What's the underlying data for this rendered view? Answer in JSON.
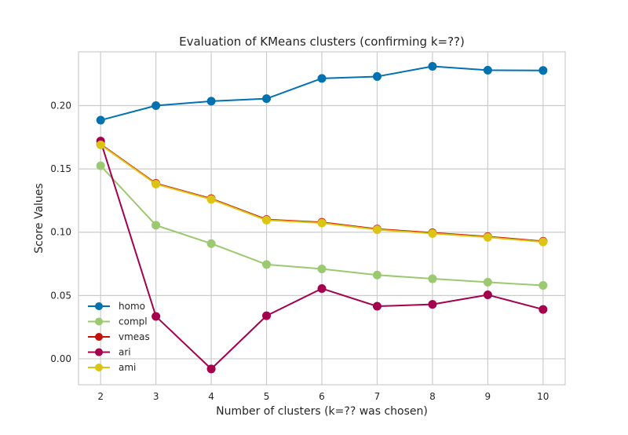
{
  "chart_data": {
    "type": "line",
    "title": "Evaluation of KMeans clusters (confirming k=??)",
    "xlabel": "Number of clusters (k=?? was chosen)",
    "ylabel": "Score Values",
    "x": [
      2,
      3,
      4,
      5,
      6,
      7,
      8,
      9,
      10
    ],
    "xlim": [
      1.6,
      10.4
    ],
    "ylim": [
      -0.0205,
      0.2425
    ],
    "xticks": [
      "2",
      "3",
      "4",
      "5",
      "6",
      "7",
      "8",
      "9",
      "10"
    ],
    "yticks": [
      {
        "value": 0.0,
        "label": "0.00"
      },
      {
        "value": 0.05,
        "label": "0.05"
      },
      {
        "value": 0.1,
        "label": "0.10"
      },
      {
        "value": 0.15,
        "label": "0.15"
      },
      {
        "value": 0.2,
        "label": "0.20"
      }
    ],
    "grid": true,
    "legend_position": "lower-left",
    "series": [
      {
        "name": "homo",
        "color": "#0072b2",
        "values": [
          0.1885,
          0.2,
          0.2035,
          0.2055,
          0.2215,
          0.223,
          0.231,
          0.228,
          0.2278
        ]
      },
      {
        "name": "compl",
        "color": "#9bc96f",
        "values": [
          0.1525,
          0.1055,
          0.091,
          0.0745,
          0.071,
          0.0662,
          0.0632,
          0.0605,
          0.058
        ]
      },
      {
        "name": "vmeas",
        "color": "#c8100b",
        "values": [
          0.1695,
          0.1385,
          0.1265,
          0.11,
          0.1078,
          0.1025,
          0.0995,
          0.0965,
          0.0928
        ]
      },
      {
        "name": "ari",
        "color": "#a4004e",
        "values": [
          0.172,
          0.0335,
          -0.008,
          0.034,
          0.0555,
          0.0415,
          0.043,
          0.0505,
          0.039
        ]
      },
      {
        "name": "ami",
        "color": "#dcc413",
        "values": [
          0.169,
          0.138,
          0.126,
          0.1095,
          0.1073,
          0.102,
          0.099,
          0.096,
          0.0923
        ]
      }
    ]
  }
}
